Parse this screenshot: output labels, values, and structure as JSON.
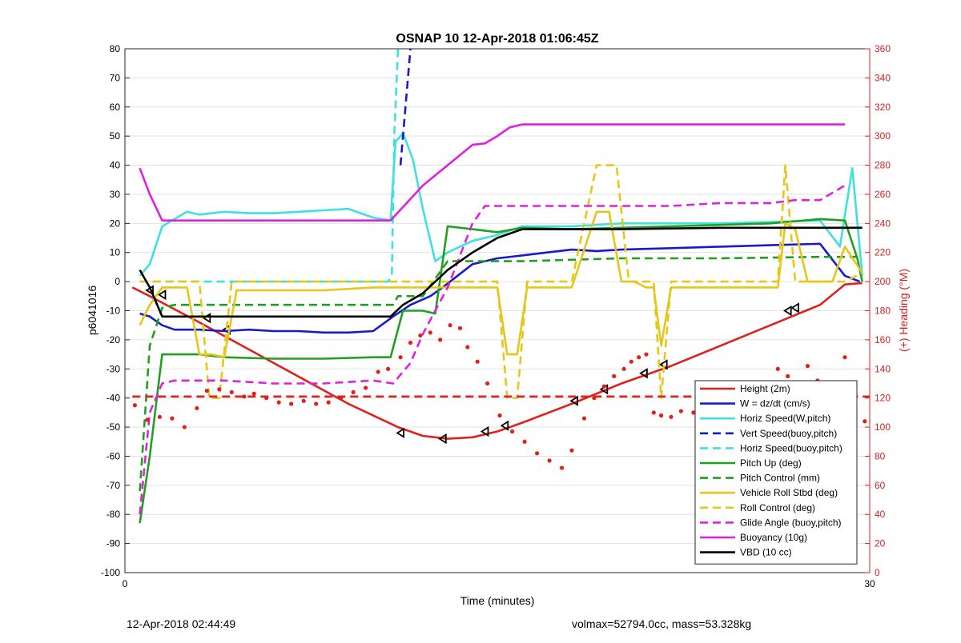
{
  "footer": {
    "left": "12-Apr-2018 02:44:49",
    "right": "volmax=52794.0cc, mass=53.328kg"
  },
  "chart_data": {
    "type": "line",
    "title": "OSNAP 10 12-Apr-2018 01:06:45Z",
    "xlabel": "Time (minutes)",
    "ylabel": "p6041016",
    "y2label": "(+) Heading (°M)",
    "xlim": [
      0,
      30
    ],
    "ylim": [
      -100,
      80
    ],
    "y2lim": [
      0,
      360
    ],
    "xticks": [
      "0",
      "30"
    ],
    "yticks": [
      -100,
      -90,
      -80,
      -70,
      -60,
      -50,
      -40,
      -30,
      -20,
      -10,
      0,
      10,
      20,
      30,
      40,
      50,
      60,
      70,
      80
    ],
    "y2ticks": [
      0,
      20,
      40,
      60,
      80,
      100,
      120,
      140,
      160,
      180,
      200,
      220,
      240,
      260,
      280,
      300,
      320,
      340,
      360
    ],
    "grid": true,
    "legend_position": "bottom-right",
    "colors": {
      "red": "#e0201b",
      "blue": "#1a1acc",
      "cyan": "#40e0e0",
      "green": "#20a020",
      "yellow": "#e6c619",
      "magenta": "#e020e0",
      "black": "#000000",
      "right_axis": "#d42020"
    },
    "series": [
      {
        "name": "Height (2m)",
        "color": "#e0201b",
        "style": "solid",
        "x": [
          0.3,
          1.0,
          3.0,
          6.0,
          9.0,
          11.0,
          12.0,
          13.0,
          14.0,
          15.0,
          16.0,
          18.0,
          20.0,
          22.0,
          24.0,
          26.0,
          28.0,
          29.0,
          29.7
        ],
        "y": [
          -2,
          -5,
          -14,
          -28,
          -42,
          -50,
          -53,
          -54,
          -53.5,
          -51.5,
          -48.5,
          -42,
          -35,
          -29,
          -22,
          -15,
          -8,
          -1,
          -0.5
        ],
        "markers_x": [
          1.0,
          1.5,
          3.3,
          4.1,
          11.1,
          12.8,
          14.5,
          15.3,
          18.1,
          19.3,
          20.9,
          21.7,
          26.7,
          27.0
        ],
        "markers_y": [
          -3,
          -4.5,
          -12.5,
          -16.5,
          -52,
          -54,
          -51.5,
          -49.5,
          -41,
          -37,
          -31.5,
          -28.5,
          -10,
          -9
        ]
      },
      {
        "name": "W = dz/dt (cm/s)",
        "color": "#1a1acc",
        "style": "solid",
        "x": [
          0.6,
          1.0,
          1.5,
          2.0,
          3.0,
          4.0,
          5.0,
          6.0,
          7.0,
          8.0,
          9.0,
          10.0,
          10.8,
          11.5,
          12.3,
          12.8,
          13.4,
          14.0,
          15.0,
          16.0,
          17.0,
          18.0,
          19.0,
          20.0,
          22.0,
          24.0,
          26.0,
          28.0,
          29.0,
          29.6
        ],
        "y": [
          -11,
          -12,
          -15,
          -16.5,
          -16.5,
          -17,
          -16.5,
          -17,
          -17,
          -17.5,
          -17.5,
          -17,
          -12,
          -8,
          -5,
          -2,
          2,
          6,
          8,
          9,
          10,
          11,
          10.5,
          11,
          11.5,
          12,
          12.5,
          13,
          2,
          0
        ]
      },
      {
        "name": "Horiz Speed(W,pitch)",
        "color": "#40e0e0",
        "style": "solid",
        "x": [
          0.6,
          1.0,
          1.5,
          2.5,
          3.0,
          4.0,
          5.0,
          6.0,
          7.0,
          8.0,
          9.0,
          10.0,
          10.7,
          10.9,
          11.2,
          11.6,
          12.0,
          12.5,
          13.0,
          14.0,
          15.0,
          16.0,
          18.0,
          20.0,
          22.0,
          24.0,
          26.0,
          28.0,
          28.8,
          29.3,
          29.7
        ],
        "y": [
          2,
          6,
          19,
          24,
          23,
          24,
          23.5,
          23.5,
          24,
          24.5,
          25,
          22,
          21,
          48,
          51,
          42,
          25,
          7,
          10,
          14,
          16,
          19,
          19,
          20,
          20,
          20,
          20.5,
          21,
          12,
          39,
          2
        ]
      },
      {
        "name": "Vert Speed(buoy,pitch)",
        "color": "#1a1acc",
        "style": "dashed",
        "x": [
          11.1,
          11.5
        ],
        "y": [
          40,
          80
        ]
      },
      {
        "name": "Horiz Speed(buoy,pitch)",
        "color": "#40e0e0",
        "style": "dashed",
        "x": [
          0.6,
          2.0,
          4.0,
          6.0,
          8.0,
          10.0,
          10.6,
          10.75,
          10.85,
          11.0
        ],
        "y": [
          0,
          0,
          0,
          0,
          0,
          0,
          0,
          2,
          50,
          80
        ]
      },
      {
        "name": "Pitch Up (deg)",
        "color": "#20a020",
        "style": "solid",
        "x": [
          0.6,
          1.0,
          1.5,
          2.0,
          3.0,
          4.0,
          6.0,
          8.0,
          10.0,
          10.7,
          11.2,
          12.0,
          12.5,
          13.0,
          14.0,
          15.0,
          16.0,
          18.0,
          20.0,
          22.0,
          24.0,
          26.0,
          28.0,
          29.0,
          29.5,
          29.7
        ],
        "y": [
          -83,
          -60,
          -25,
          -25,
          -25,
          -26,
          -26.5,
          -26.5,
          -26,
          -26,
          -10,
          -10,
          -11,
          19,
          18,
          17,
          18.5,
          18,
          18.5,
          19,
          19.5,
          20,
          21.5,
          21,
          8,
          0
        ]
      },
      {
        "name": "Pitch Control (mm)",
        "color": "#20a020",
        "style": "dashed",
        "x": [
          0.6,
          1.0,
          1.5,
          2.0,
          4.0,
          6.0,
          8.0,
          10.0,
          10.8,
          11.0,
          12.0,
          13.0,
          16.0,
          20.0,
          24.0,
          28.0,
          29.5
        ],
        "y": [
          -72,
          -22,
          -9,
          -8,
          -8,
          -8,
          -8,
          -8,
          -8,
          -5,
          -5,
          7,
          7,
          8,
          8,
          8.5,
          8.5
        ]
      },
      {
        "name": "Vehicle Roll Stbd (deg)",
        "color": "#e6c619",
        "style": "solid",
        "x": [
          0.6,
          1.0,
          1.5,
          2.5,
          3.0,
          3.5,
          4.0,
          4.5,
          6.0,
          8.0,
          10.0,
          12.0,
          14.0,
          15.0,
          15.4,
          15.8,
          16.2,
          17.0,
          18.0,
          19.0,
          19.5,
          20.0,
          20.5,
          21.0,
          21.3,
          21.6,
          22.0,
          24.0,
          25.0,
          26.0,
          26.3,
          26.6,
          27.0,
          27.5,
          28.0,
          28.5,
          29.0,
          29.7
        ],
        "y": [
          -15,
          -8,
          -2,
          -2,
          -25,
          -25,
          -26,
          -3,
          -3,
          -3,
          -2,
          -2,
          -2,
          -2,
          -25,
          -25,
          -2,
          -2,
          -2,
          24,
          24,
          0,
          0,
          -2,
          -2,
          -22,
          -2,
          -2,
          -2,
          -2,
          -2,
          20,
          18,
          0,
          0,
          0,
          12,
          3
        ]
      },
      {
        "name": "Roll Control (deg)",
        "color": "#e6c619",
        "style": "dashed",
        "x": [
          0.6,
          2.0,
          2.5,
          3.0,
          3.4,
          3.8,
          4.3,
          6.0,
          10.0,
          14.0,
          15.0,
          15.4,
          15.8,
          16.2,
          17.0,
          18.0,
          19.0,
          19.8,
          20.3,
          21.0,
          21.3,
          21.6,
          22.0,
          24.0,
          26.0,
          26.3,
          26.6,
          27.0,
          28.0,
          29.0,
          29.7
        ],
        "y": [
          0,
          0,
          0,
          0,
          -40,
          -40,
          0,
          0,
          0,
          0,
          0,
          -40,
          -40,
          0,
          0,
          0,
          40,
          40,
          0,
          0,
          0,
          -40,
          0,
          0,
          0,
          0,
          40,
          0,
          0,
          0,
          3
        ]
      },
      {
        "name": "Glide Angle (buoy,pitch)",
        "color": "#e020e0",
        "style": "dashed",
        "x": [
          0.6,
          1.0,
          1.5,
          2.0,
          4.0,
          6.0,
          8.0,
          10.0,
          10.8,
          11.5,
          12.0,
          13.0,
          14.0,
          14.5,
          15.0,
          16.0,
          18.0,
          20.0,
          22.0,
          24.0,
          26.0,
          27.0,
          28.0,
          29.0
        ],
        "y": [
          -80,
          -45,
          -35,
          -34,
          -34,
          -35,
          -35,
          -34,
          -35,
          -28,
          -18,
          -2,
          20,
          26,
          26,
          26,
          26,
          26,
          26,
          27,
          27,
          28,
          28,
          33
        ]
      },
      {
        "name": "Buoyancy (10g)",
        "color": "#e020e0",
        "style": "solid",
        "x": [
          0.6,
          1.0,
          1.5,
          2.0,
          4.0,
          6.0,
          8.0,
          10.0,
          10.7,
          12.0,
          14.0,
          14.5,
          15.0,
          15.5,
          16.0,
          18.0,
          20.0,
          24.0,
          28.0,
          29.0
        ],
        "y": [
          39,
          30,
          21,
          21,
          21,
          21,
          21,
          21,
          21,
          33,
          47,
          47.5,
          50,
          53,
          54,
          54,
          54,
          54,
          54,
          54
        ]
      },
      {
        "name": "VBD (10 cc)",
        "color": "#000000",
        "style": "solid",
        "x": [
          0.6,
          1.0,
          1.5,
          2.0,
          4.0,
          6.0,
          8.0,
          10.0,
          10.7,
          11.2,
          12.0,
          13.0,
          14.0,
          15.0,
          16.0,
          17.0,
          18.0,
          20.0,
          24.0,
          28.0,
          29.7
        ],
        "y": [
          4,
          -2,
          -12,
          -12,
          -12,
          -12,
          -12,
          -12,
          -12,
          -8,
          -4,
          4,
          10,
          15,
          18,
          18,
          18,
          18,
          18.5,
          18.5,
          18.5
        ]
      },
      {
        "name": "",
        "color": "#e0201b",
        "style": "dashed",
        "axis": "right",
        "x": [
          0.3,
          30.0
        ],
        "y": [
          121,
          121
        ]
      },
      {
        "name": "",
        "color": "#e0201b",
        "style": "dots",
        "axis": "right",
        "x": [
          0.4,
          0.9,
          1.4,
          1.9,
          2.4,
          2.9,
          3.3,
          3.8,
          4.3,
          4.8,
          5.2,
          5.7,
          6.2,
          6.7,
          7.2,
          7.7,
          8.2,
          8.7,
          9.2,
          9.7,
          10.2,
          10.6,
          11.1,
          11.5,
          11.9,
          12.3,
          12.7,
          13.1,
          13.5,
          13.8,
          14.2,
          14.6,
          15.1,
          15.6,
          16.1,
          16.6,
          17.1,
          17.6,
          18.0,
          18.5,
          18.9,
          19.3,
          19.7,
          20.1,
          20.4,
          20.7,
          21.0,
          21.3,
          21.6,
          22.0,
          22.4,
          22.9,
          23.4,
          23.9,
          24.4,
          24.9,
          25.4,
          25.9,
          26.3,
          26.7,
          27.1,
          27.5,
          27.9,
          28.3,
          28.6,
          29.0,
          29.4,
          29.8
        ],
        "y": [
          115,
          105,
          107,
          106,
          100,
          113,
          125,
          126,
          124,
          121,
          123,
          120,
          117,
          116,
          118,
          116,
          117,
          120,
          124,
          127,
          138,
          140,
          148,
          158,
          163,
          165,
          160,
          170,
          168,
          155,
          145,
          130,
          108,
          97,
          90,
          82,
          77,
          72,
          84,
          106,
          120,
          128,
          135,
          140,
          145,
          148,
          150,
          110,
          108,
          107,
          111,
          110,
          115,
          112,
          117,
          114,
          118,
          120,
          140,
          135,
          130,
          142,
          132,
          128,
          120,
          148,
          113,
          104
        ]
      }
    ]
  }
}
